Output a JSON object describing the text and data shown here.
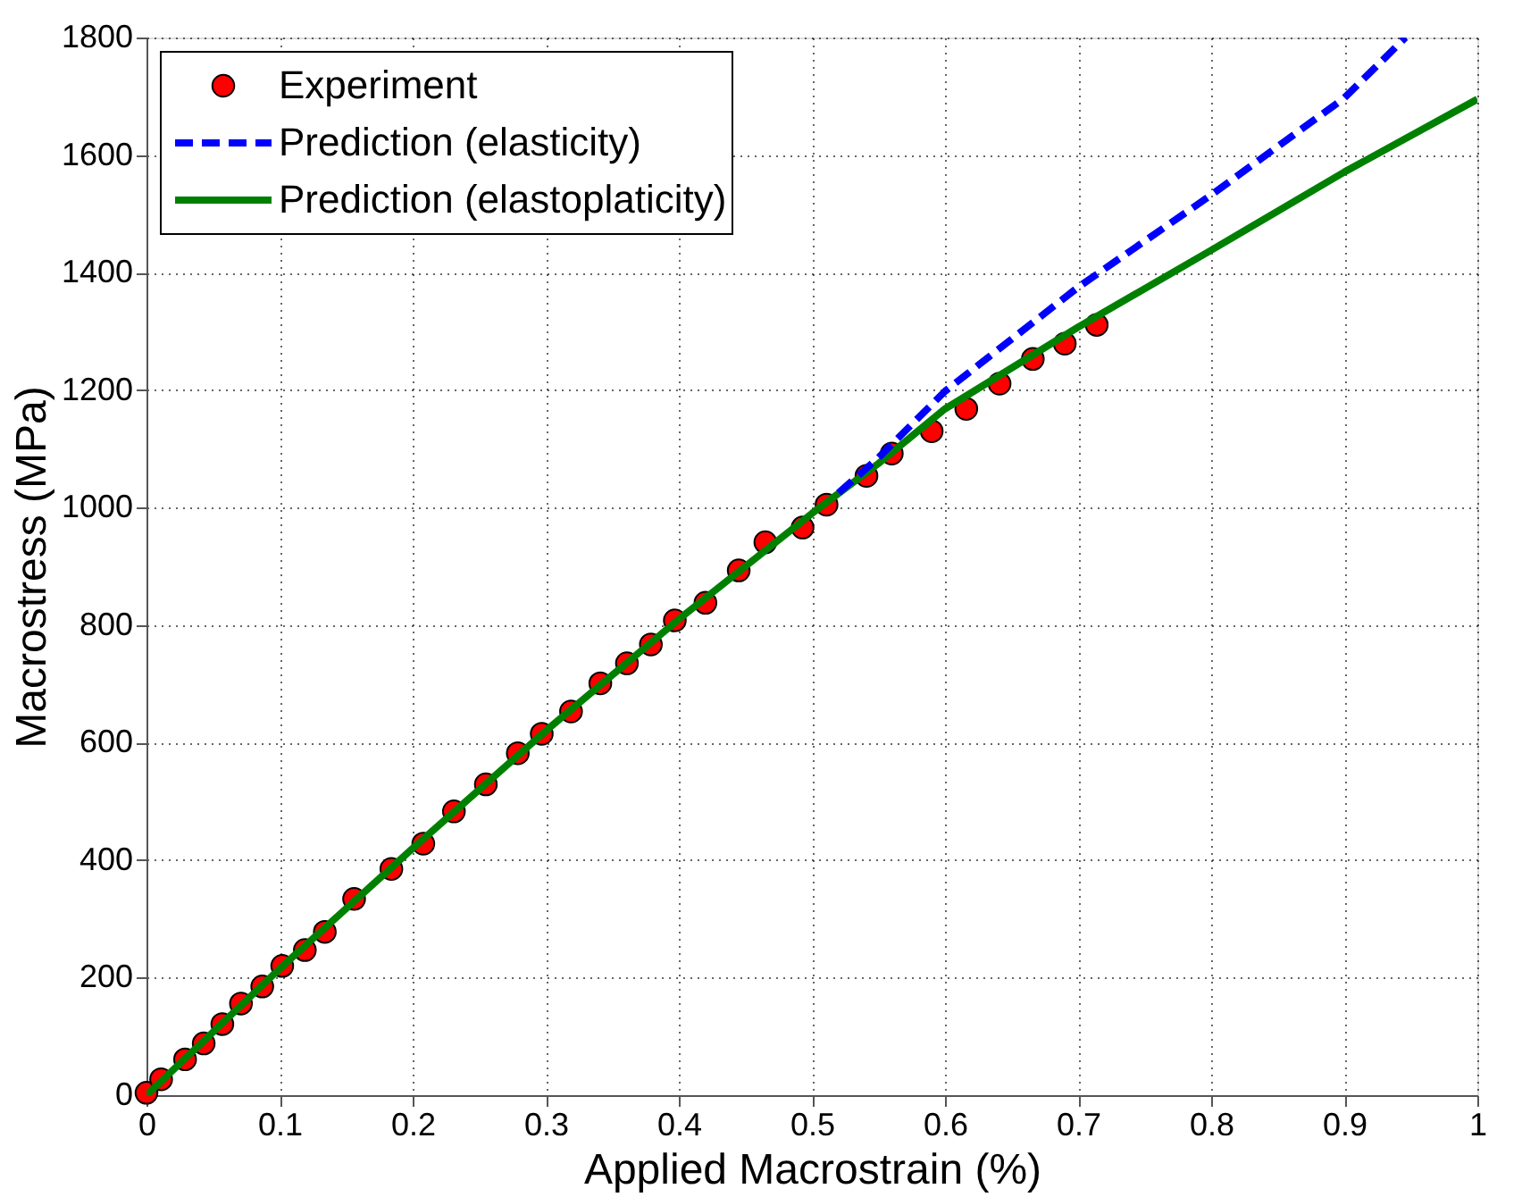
{
  "chart_data": {
    "type": "line",
    "xlabel": "Applied Macrostrain (%)",
    "ylabel": "Macrostress (MPa)",
    "xlim": [
      0,
      1
    ],
    "xticks": [
      0,
      0.1,
      0.2,
      0.3,
      0.4,
      0.5,
      0.6,
      0.7,
      0.8,
      0.9,
      1
    ],
    "ylim": [
      0,
      1800
    ],
    "yticks": [
      0,
      200,
      400,
      600,
      800,
      1000,
      1200,
      1400,
      1600,
      1800
    ],
    "grid": true,
    "legend": "top left",
    "series": [
      {
        "name": "Experiment",
        "type": "scatter",
        "marker": "circle",
        "color": "#ff0000",
        "x": [
          0,
          0.011,
          0.029,
          0.043,
          0.057,
          0.071,
          0.087,
          0.102,
          0.119,
          0.134,
          0.156,
          0.184,
          0.208,
          0.231,
          0.255,
          0.279,
          0.297,
          0.319,
          0.341,
          0.361,
          0.379,
          0.397,
          0.42,
          0.445,
          0.465,
          0.493,
          0.511,
          0.541,
          0.56,
          0.59,
          0.616,
          0.641,
          0.666,
          0.69,
          0.714
        ],
        "values": [
          4,
          27,
          61,
          88,
          121,
          156,
          185,
          220,
          247,
          278,
          334,
          385,
          428,
          483,
          529,
          582,
          615,
          653,
          701,
          735,
          767,
          808,
          838,
          893,
          941,
          966,
          1005,
          1054,
          1092,
          1130,
          1168,
          1211,
          1253,
          1279,
          1311
        ]
      },
      {
        "name": "Prediction (elasticity)",
        "type": "line",
        "line_style": "dashed",
        "color": "#0000ff",
        "x": [
          0.52,
          0.55,
          0.6,
          0.7,
          0.8,
          0.9,
          0.946
        ],
        "values": [
          1025,
          1085,
          1198,
          1375,
          1532,
          1697,
          1800
        ]
      },
      {
        "name": "Prediction (elastoplaticity)",
        "type": "line",
        "line_style": "solid",
        "color": "#008000",
        "x": [
          0,
          0.1,
          0.2,
          0.3,
          0.4,
          0.5,
          0.55,
          0.6,
          0.7,
          0.8,
          0.9,
          1
        ],
        "values": [
          0,
          215,
          420,
          620,
          810,
          990,
          1075,
          1168,
          1307,
          1438,
          1571,
          1695
        ]
      }
    ]
  }
}
